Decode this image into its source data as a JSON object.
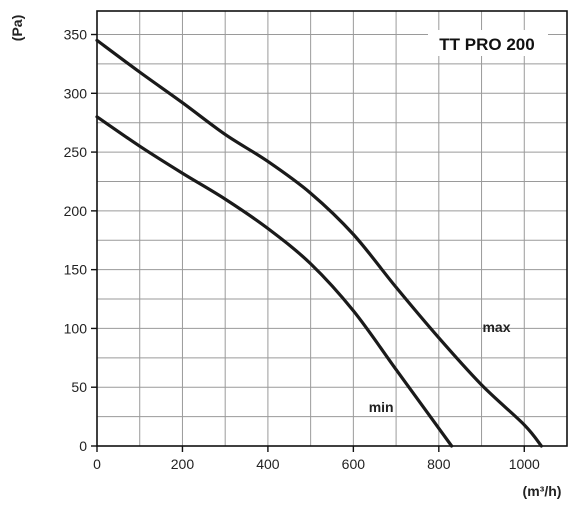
{
  "chart_data": {
    "type": "line",
    "title": "TT PRO 200",
    "xlabel": "(m³/h)",
    "ylabel": "(Pa)",
    "xlim": [
      0,
      1100
    ],
    "ylim": [
      0,
      370
    ],
    "x_ticks": [
      0,
      200,
      400,
      600,
      800,
      1000
    ],
    "y_ticks": [
      0,
      50,
      100,
      150,
      200,
      250,
      300,
      350
    ],
    "grid": true,
    "series": [
      {
        "name": "max",
        "points": [
          [
            0,
            345
          ],
          [
            100,
            318
          ],
          [
            200,
            292
          ],
          [
            300,
            265
          ],
          [
            400,
            242
          ],
          [
            500,
            215
          ],
          [
            600,
            180
          ],
          [
            700,
            135
          ],
          [
            800,
            92
          ],
          [
            900,
            52
          ],
          [
            1000,
            18
          ],
          [
            1040,
            0
          ]
        ]
      },
      {
        "name": "min",
        "points": [
          [
            0,
            280
          ],
          [
            100,
            255
          ],
          [
            200,
            232
          ],
          [
            300,
            210
          ],
          [
            400,
            185
          ],
          [
            500,
            155
          ],
          [
            600,
            115
          ],
          [
            700,
            65
          ],
          [
            780,
            25
          ],
          [
            830,
            0
          ]
        ]
      }
    ]
  }
}
